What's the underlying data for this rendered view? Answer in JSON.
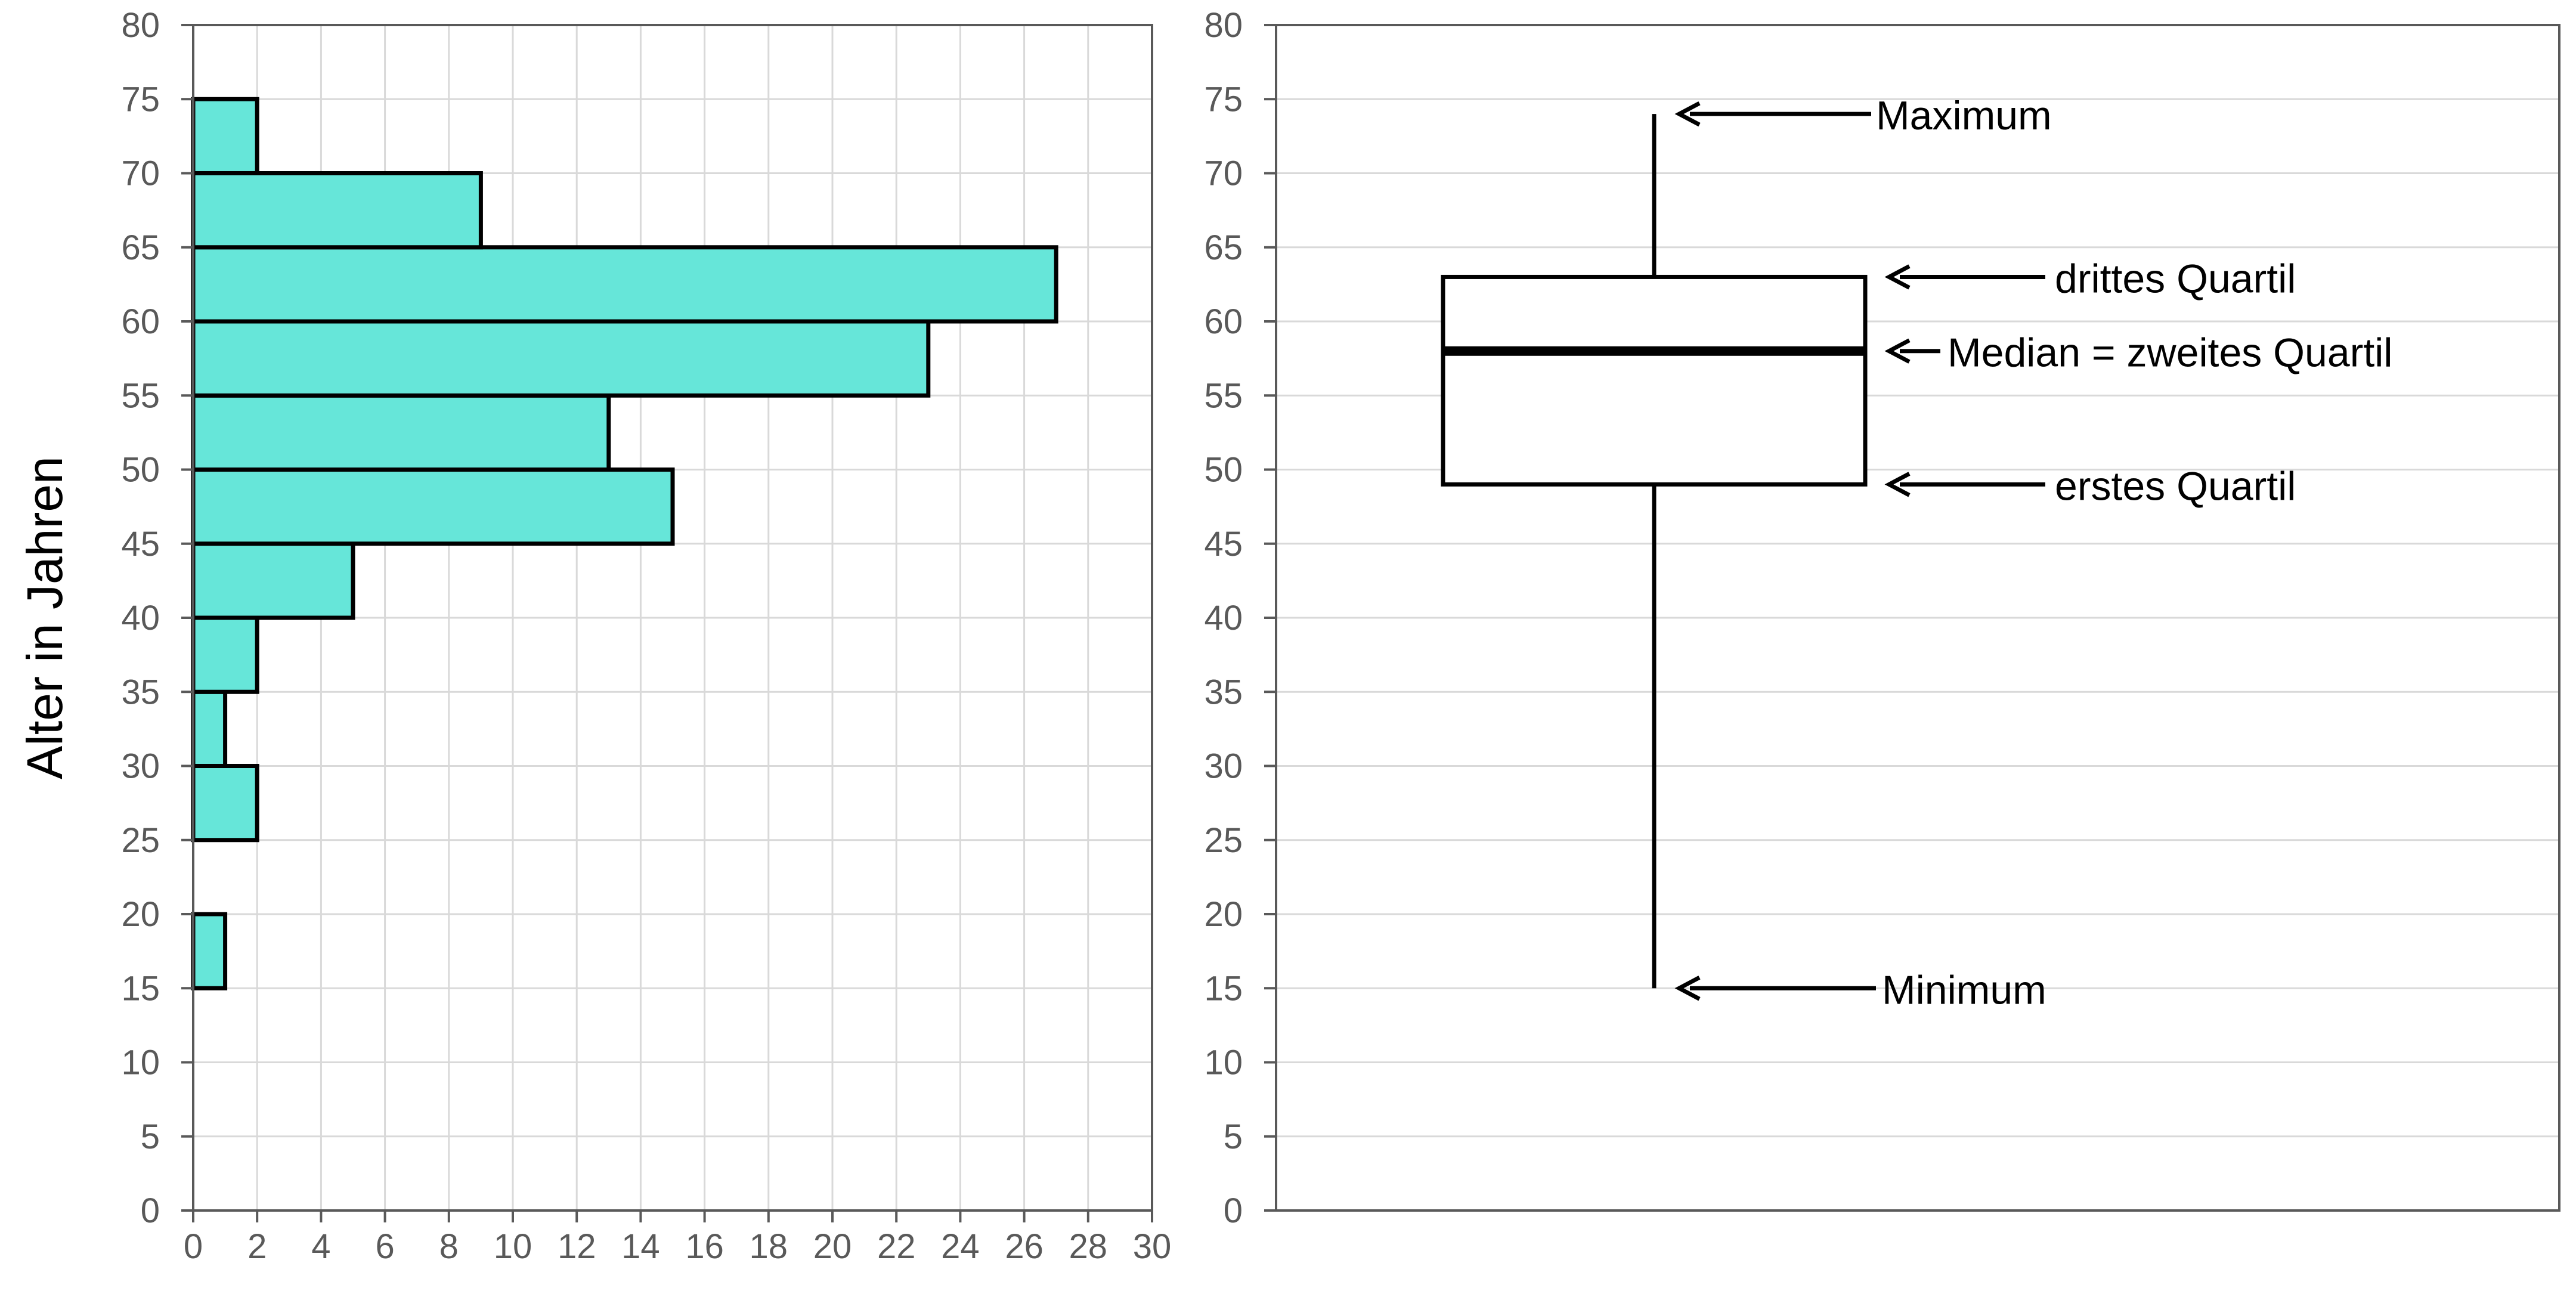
{
  "colors": {
    "bar_fill": "#66E6D9",
    "bar_stroke": "#000000",
    "grid": "#D9D9D9",
    "axis": "#595959",
    "tick_text": "#595959",
    "box_fill": "#FFFFFF",
    "box_stroke": "#000000"
  },
  "chart_data": [
    {
      "type": "bar",
      "orientation": "horizontal",
      "ylabel": "Alter in Jahren",
      "xlabel": "",
      "xlim": [
        0,
        30
      ],
      "ylim": [
        0,
        80
      ],
      "xticks": [
        "0",
        "2",
        "4",
        "6",
        "8",
        "10",
        "12",
        "14",
        "16",
        "18",
        "20",
        "22",
        "24",
        "26",
        "28",
        "30"
      ],
      "yticks": [
        "0",
        "5",
        "10",
        "15",
        "20",
        "25",
        "30",
        "35",
        "40",
        "45",
        "50",
        "55",
        "60",
        "65",
        "70",
        "75",
        "80"
      ],
      "grid": true,
      "bins": [
        {
          "from": 15,
          "to": 20,
          "count": 1
        },
        {
          "from": 25,
          "to": 30,
          "count": 2
        },
        {
          "from": 30,
          "to": 35,
          "count": 1
        },
        {
          "from": 35,
          "to": 40,
          "count": 2
        },
        {
          "from": 40,
          "to": 45,
          "count": 5
        },
        {
          "from": 45,
          "to": 50,
          "count": 15
        },
        {
          "from": 50,
          "to": 55,
          "count": 13
        },
        {
          "from": 55,
          "to": 60,
          "count": 23
        },
        {
          "from": 60,
          "to": 65,
          "count": 27
        },
        {
          "from": 65,
          "to": 70,
          "count": 9
        },
        {
          "from": 70,
          "to": 75,
          "count": 2
        }
      ]
    },
    {
      "type": "boxplot",
      "ylim": [
        0,
        80
      ],
      "yticks": [
        "0",
        "5",
        "10",
        "15",
        "20",
        "25",
        "30",
        "35",
        "40",
        "45",
        "50",
        "55",
        "60",
        "65",
        "70",
        "75",
        "80"
      ],
      "grid": true,
      "min": 15,
      "q1": 49,
      "median": 58,
      "q3": 63,
      "max": 74,
      "annotations": {
        "max": "Maximum",
        "q3": "drittes Quartil",
        "median": "Median = zweites Quartil",
        "q1": "erstes Quartil",
        "min": "Minimum"
      }
    }
  ]
}
